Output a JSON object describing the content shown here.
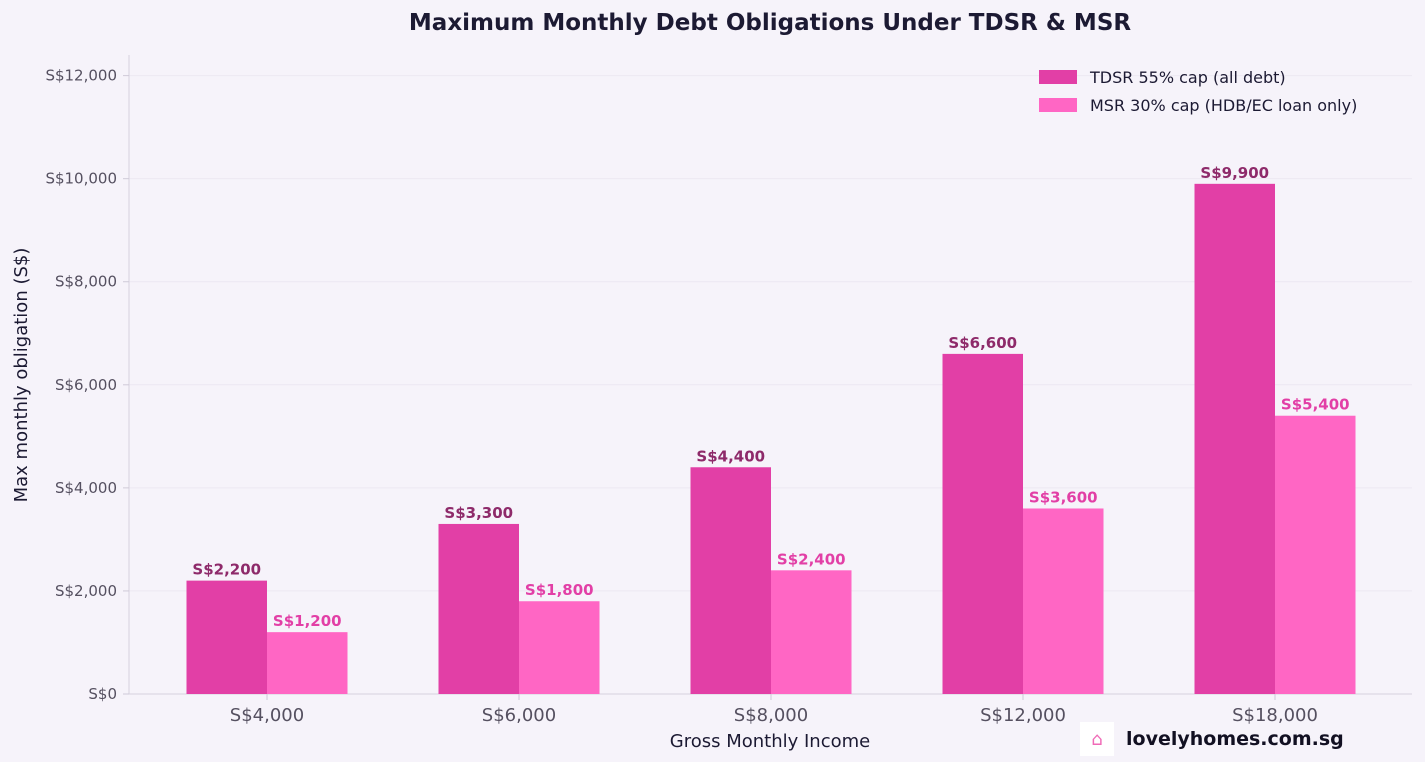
{
  "chart_data": {
    "type": "bar",
    "title": "Maximum Monthly Debt Obligations Under TDSR & MSR",
    "xlabel": "Gross Monthly Income",
    "ylabel": "Max monthly obligation (S$)",
    "categories": [
      "S$4,000",
      "S$6,000",
      "S$8,000",
      "S$12,000",
      "S$18,000"
    ],
    "series": [
      {
        "name": "TDSR 55% cap (all debt)",
        "values": [
          2200,
          3300,
          4400,
          6600,
          9900
        ],
        "labels": [
          "S$2,200",
          "S$3,300",
          "S$4,400",
          "S$6,600",
          "S$9,900"
        ],
        "color": "#e23fa6",
        "label_color": "#8e2a6a"
      },
      {
        "name": "MSR 30% cap (HDB/EC loan only)",
        "values": [
          1200,
          1800,
          2400,
          3600,
          5400
        ],
        "labels": [
          "S$1,200",
          "S$1,800",
          "S$2,400",
          "S$3,600",
          "S$5,400"
        ],
        "color": "#ff66c4",
        "label_color": "#e23fa6"
      }
    ],
    "ylim": [
      0,
      12400
    ],
    "yticks": [
      0,
      2000,
      4000,
      6000,
      8000,
      10000,
      12000
    ],
    "ytick_labels": [
      "S$0",
      "S$2,000",
      "S$4,000",
      "S$6,000",
      "S$8,000",
      "S$10,000",
      "S$12,000"
    ],
    "grid": true,
    "legend_position": "top-right"
  },
  "branding": {
    "icon": "house-icon",
    "icon_glyph": "⌂",
    "text": "lovelyhomes.com.sg"
  }
}
